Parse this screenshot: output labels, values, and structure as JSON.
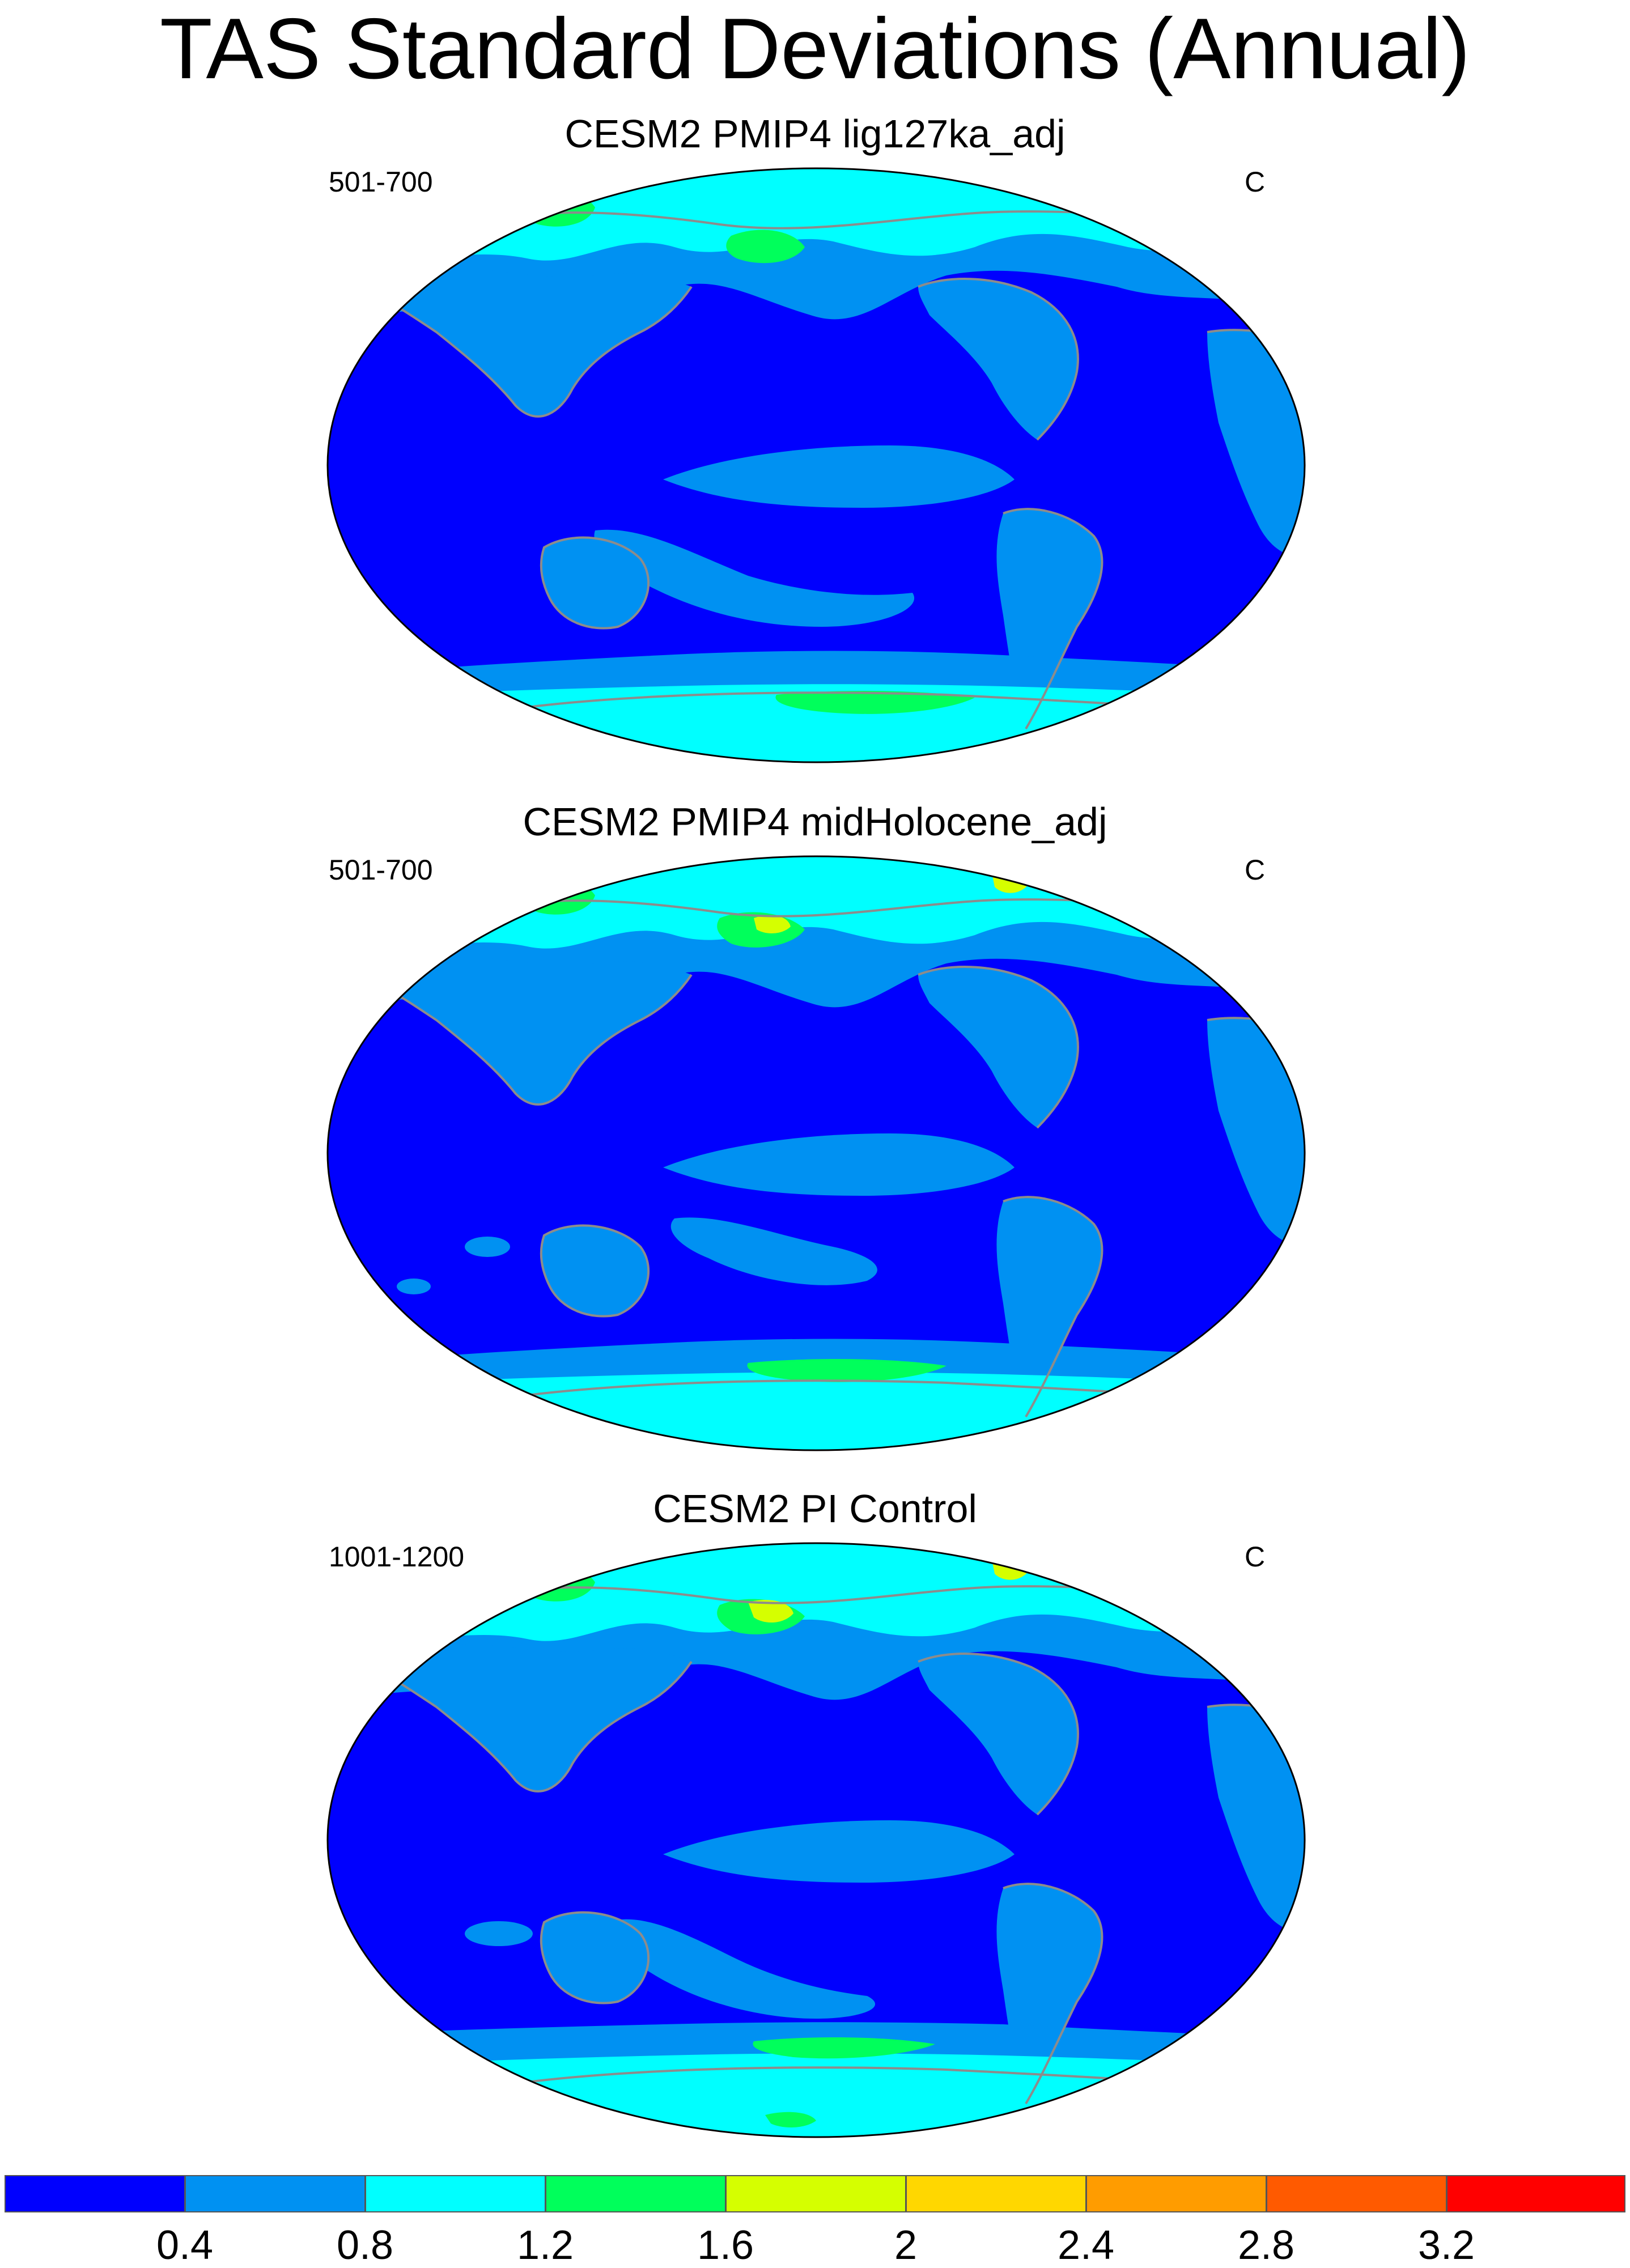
{
  "title": "TAS Standard Deviations (Annual)",
  "panels": [
    {
      "title": "CESM2 PMIP4 lig127ka_adj",
      "left_label": "501-700",
      "right_label": "C"
    },
    {
      "title": "CESM2 PMIP4 midHolocene_adj",
      "left_label": "501-700",
      "right_label": "C"
    },
    {
      "title": "CESM2 PI Control",
      "left_label": "1001-1200",
      "right_label": "C"
    }
  ],
  "colorbar": {
    "ticks": [
      "0.4",
      "0.8",
      "1.2",
      "1.6",
      "2",
      "2.4",
      "2.8",
      "3.2"
    ],
    "colors": [
      "#0000fe",
      "#0091f2",
      "#00ffff",
      "#00ff5b",
      "#d5ff00",
      "#ffd700",
      "#ff9c00",
      "#ff5a00",
      "#ff0000"
    ]
  },
  "map_colors": {
    "ocean_low": "#0000fe",
    "band_mid": "#0091f2",
    "high_lat": "#00ffff",
    "hot_green": "#00ff5b",
    "hot_yellow": "#d5ff00",
    "coast": "#8c8c8c"
  }
}
